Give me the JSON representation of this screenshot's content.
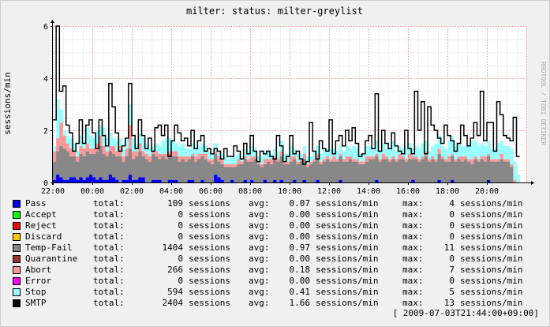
{
  "chart_data": {
    "type": "area",
    "stacked": true,
    "title": "milter: status: milter-greylist",
    "ylabel": "sessions/min",
    "watermark": "RRDTOOL / TOBI OETIKER",
    "ylim": [
      0,
      6
    ],
    "yticks": [
      0,
      2,
      4,
      6
    ],
    "x_range_hours": [
      22,
      46
    ],
    "x_tick_labels": [
      "22:00",
      "00:00",
      "02:00",
      "04:00",
      "06:00",
      "08:00",
      "10:00",
      "12:00",
      "14:00",
      "16:00",
      "18:00",
      "20:00"
    ],
    "x_tick_hours": [
      22,
      24,
      26,
      28,
      30,
      32,
      34,
      36,
      38,
      40,
      42,
      44
    ],
    "grid": true,
    "bucket_minutes": 10,
    "series": [
      {
        "name": "Pass",
        "color": "#0000ff",
        "values": [
          0.1,
          0.3,
          0.2,
          0.1,
          0.1,
          0.2,
          0.2,
          0.1,
          0.2,
          0.1,
          0.2,
          0.3,
          0.2,
          0.1,
          0.2,
          0.1,
          0.1,
          0.3,
          0.2,
          0.1,
          0,
          0.1,
          0.1,
          0.3,
          0.1,
          0.1,
          0.2,
          0.2,
          0,
          0,
          0.1,
          0.1,
          0.1,
          0,
          0,
          0.1,
          0.1,
          0.1,
          0,
          0,
          0,
          0.1,
          0.1,
          0,
          0,
          0.1,
          0,
          0,
          0,
          0.3,
          0.2,
          0.1,
          0,
          0,
          0.1,
          0,
          0,
          0,
          0.1,
          0,
          0.1,
          0,
          0,
          0,
          0.1,
          0,
          0,
          0.1,
          0,
          0.1,
          0,
          0,
          0,
          0.1,
          0,
          0,
          0.1,
          0,
          0,
          0,
          0.1,
          0,
          0,
          0,
          0,
          0,
          0,
          0.1,
          0,
          0,
          0,
          0,
          0,
          0,
          0,
          0,
          0,
          0,
          0.1,
          0,
          0,
          0,
          0,
          0,
          0,
          0,
          0,
          0,
          0,
          0.1,
          0,
          0,
          0,
          0,
          0,
          0,
          0,
          0.1,
          0,
          0,
          0,
          0.1,
          0,
          0,
          0,
          0,
          0,
          0,
          0,
          0,
          0,
          0,
          0.1,
          0,
          0,
          0,
          0,
          0,
          0,
          0,
          0,
          0
        ]
      },
      {
        "name": "Accept",
        "color": "#00ff00",
        "values": []
      },
      {
        "name": "Reject",
        "color": "#ff0000",
        "values": []
      },
      {
        "name": "Discard",
        "color": "#ffcc00",
        "values": []
      },
      {
        "name": "Temp-Fail",
        "color": "#888888",
        "values": [
          0.7,
          0.9,
          1.2,
          1.2,
          1.1,
          0.8,
          0.8,
          0.7,
          0.9,
          0.9,
          1.0,
          0.8,
          0.9,
          1.1,
          1.2,
          1.0,
          0.9,
          0.9,
          0.9,
          0.9,
          1.0,
          0.7,
          0.9,
          1.0,
          0.8,
          0.9,
          1.0,
          0.8,
          0.9,
          0.8,
          1.0,
          0.9,
          0.8,
          1.0,
          0.9,
          1.0,
          0.9,
          0.9,
          0.8,
          0.9,
          0.8,
          0.8,
          0.9,
          0.8,
          0.9,
          0.9,
          0.9,
          0.8,
          0.7,
          0.8,
          0.6,
          0.6,
          0.6,
          0.6,
          0.5,
          0.6,
          0.7,
          0.7,
          0.8,
          0.8,
          0.7,
          0.9,
          0.7,
          0.6,
          0.6,
          0.8,
          0.7,
          0.8,
          0.8,
          0.9,
          0.7,
          0.7,
          0.8,
          0.8,
          0.7,
          0.8,
          0.8,
          0.6,
          0.7,
          0.8,
          0.8,
          0.7,
          0.8,
          0.9,
          0.8,
          0.8,
          0.8,
          0.9,
          0.8,
          0.8,
          0.9,
          0.8,
          0.8,
          0.7,
          0.7,
          0.8,
          0.9,
          0.9,
          0.9,
          0.8,
          0.9,
          0.9,
          0.8,
          0.9,
          0.8,
          0.9,
          0.9,
          0.8,
          0.9,
          0.8,
          0.9,
          0.8,
          0.9,
          1.0,
          0.8,
          0.9,
          0.8,
          1.0,
          0.9,
          0.8,
          0.8,
          0.9,
          0.8,
          0.9,
          0.8,
          0.9,
          0.8,
          0.7,
          0.9,
          0.8,
          0.9,
          0.8,
          0.9,
          0.8,
          0.8,
          0.8,
          0.9,
          0.8,
          0.8,
          0.6
        ]
      },
      {
        "name": "Quarantine",
        "color": "#993333",
        "values": []
      },
      {
        "name": "Abort",
        "color": "#ff9999",
        "values": [
          0.4,
          0.5,
          0.9,
          0.5,
          0.3,
          0.3,
          0.2,
          0.2,
          0.3,
          0.3,
          0.3,
          0.2,
          0.2,
          0.3,
          0.4,
          0.3,
          0.2,
          0.2,
          0.3,
          0.2,
          0.4,
          0.2,
          0.3,
          0.9,
          0.3,
          0.2,
          0.3,
          0.2,
          0.2,
          0.2,
          0.1,
          0.2,
          0.2,
          0.1,
          0.2,
          0.1,
          0.2,
          0.2,
          0.2,
          0.1,
          0.2,
          0.1,
          0.1,
          0.2,
          0.2,
          0.1,
          0.2,
          0.1,
          0.2,
          0.1,
          0.2,
          0.2,
          0.1,
          0.1,
          0.1,
          0.1,
          0.2,
          0.1,
          0.1,
          0.1,
          0.2,
          0.1,
          0.1,
          0.1,
          0.2,
          0.1,
          0.2,
          0.1,
          0.1,
          0.2,
          0.1,
          0.1,
          0.2,
          0.1,
          0.1,
          0.1,
          0.2,
          0.1,
          0.1,
          0.1,
          0.2,
          0.1,
          0.1,
          0.1,
          0.1,
          0.2,
          0.1,
          0.1,
          0.1,
          0.2,
          0.1,
          0.1,
          0.1,
          0.1,
          0.1,
          0.2,
          0.1,
          0.1,
          0.1,
          0.1,
          0.2,
          0.1,
          0.1,
          0.1,
          0.1,
          0.2,
          0.1,
          0.1,
          0.2,
          0.1,
          0.1,
          0.1,
          0.1,
          0.2,
          0.1,
          0.1,
          0.1,
          0.2,
          0.1,
          0.1,
          0.2,
          0.1,
          0.1,
          0.1,
          0.2,
          0.1,
          0.1,
          0.2,
          0.1,
          0.1,
          0.1,
          0.2,
          0.1,
          0.1,
          0.1,
          0.1,
          0.2,
          0.1,
          0.1,
          0.1,
          0.1
        ]
      },
      {
        "name": "Error",
        "color": "#ff00ff",
        "values": []
      },
      {
        "name": "Stop",
        "color": "#99ffff",
        "values": [
          0.2,
          1.5,
          0.5,
          0.2,
          0.3,
          0.4,
          0.3,
          0.2,
          0.4,
          0.3,
          0.6,
          0.5,
          0.4,
          0.5,
          0.4,
          0.7,
          0.5,
          0.5,
          0.3,
          0.4,
          0.3,
          0.3,
          0.4,
          0.8,
          0.5,
          0.3,
          0.4,
          0.5,
          0.4,
          0.3,
          0.2,
          0.3,
          0.3,
          0.5,
          0.6,
          0.5,
          0.4,
          0.3,
          0.4,
          0.5,
          0.3,
          0.3,
          0.4,
          0.3,
          0.3,
          0.4,
          0.3,
          0.3,
          0.2,
          0.3,
          0.2,
          0.2,
          0.3,
          0.2,
          0.3,
          0.3,
          0.2,
          0.2,
          0.3,
          0.3,
          0.4,
          0.3,
          0.2,
          0.3,
          0.3,
          0.3,
          0.2,
          0.3,
          0.3,
          0.4,
          0.3,
          0.3,
          0.4,
          0.3,
          0.3,
          0.2,
          0.3,
          0.3,
          0.2,
          0.3,
          0.3,
          0.3,
          0.4,
          0.3,
          0.4,
          0.3,
          0.3,
          0.3,
          0.3,
          0.4,
          0.3,
          0.5,
          0.4,
          0.3,
          0.3,
          0.4,
          0.4,
          0.3,
          0.5,
          0.3,
          0.4,
          0.3,
          0.4,
          0.6,
          0.3,
          0.3,
          0.3,
          0.4,
          0.4,
          0.3,
          0.4,
          0.4,
          0.5,
          0.4,
          0.3,
          0.4,
          0.6,
          0.5,
          0.4,
          0.4,
          0.6,
          0.7,
          0.5,
          0.5,
          0.4,
          0.4,
          0.6,
          0.7,
          0.6,
          0.5,
          0.5,
          0.4,
          0.5,
          0.4,
          0.4,
          0.6,
          0.5,
          0.5,
          0.5,
          0.6,
          0.7,
          0.3
        ]
      },
      {
        "name": "SMTP",
        "color": "#000000",
        "line": true,
        "values": [
          2.4,
          6.0,
          3.5,
          3.7,
          2.2,
          1.9,
          1.2,
          1.5,
          2.4,
          1.5,
          2.2,
          2.4,
          1.9,
          1.3,
          2.4,
          1.8,
          1.4,
          3.8,
          2.9,
          1.9,
          1.2,
          1.4,
          1.7,
          3.8,
          1.8,
          1.3,
          2.4,
          1.8,
          1.3,
          1.7,
          1.2,
          2.1,
          2.2,
          1.8,
          2.2,
          1.0,
          1.6,
          2.2,
          1.9,
          1.6,
          1.7,
          1.4,
          2.0,
          1.3,
          1.6,
          1.8,
          1.2,
          1.3,
          1.1,
          1.3,
          1.2,
          0.9,
          1.3,
          1.0,
          1.0,
          1.4,
          1.2,
          0.9,
          1.5,
          1.1,
          1.8,
          1.2,
          0.8,
          1.2,
          1.1,
          1.2,
          1.0,
          0.9,
          1.8,
          1.4,
          0.8,
          1.0,
          1.8,
          1.1,
          1.2,
          0.9,
          0.7,
          0.8,
          2.3,
          1.2,
          0.9,
          1.6,
          1.3,
          1.2,
          2.4,
          1.1,
          1.6,
          1.8,
          1.4,
          2.0,
          1.6,
          2.1,
          1.5,
          1.0,
          1.1,
          1.6,
          1.8,
          1.3,
          3.4,
          1.2,
          2.0,
          1.5,
          1.3,
          1.9,
          1.4,
          1.2,
          1.1,
          2.0,
          1.3,
          1.1,
          3.5,
          2.0,
          3.1,
          1.1,
          2.9,
          2.2,
          2.0,
          1.7,
          1.5,
          2.2,
          1.8,
          1.6,
          1.2,
          1.5,
          2.2,
          1.8,
          1.4,
          1.7,
          2.3,
          1.8,
          3.5,
          1.6,
          2.3,
          2.3,
          1.2,
          3.1,
          2.6,
          1.8,
          1.7,
          1.6,
          2.5,
          1.0
        ]
      }
    ]
  },
  "legend": {
    "rows": [
      {
        "name": "Pass",
        "color": "#0000ff",
        "total_label": "total:",
        "total": "109",
        "total_unit": "sessions",
        "avg_label": "avg:",
        "avg": "0.07",
        "avg_unit": "sessions/min",
        "max_label": "max:",
        "max": "4",
        "max_unit": "sessions/min"
      },
      {
        "name": "Accept",
        "color": "#00ff00",
        "total_label": "total:",
        "total": "0",
        "total_unit": "sessions",
        "avg_label": "avg:",
        "avg": "0.00",
        "avg_unit": "sessions/min",
        "max_label": "max:",
        "max": "0",
        "max_unit": "sessions/min"
      },
      {
        "name": "Reject",
        "color": "#ff0000",
        "total_label": "total:",
        "total": "0",
        "total_unit": "sessions",
        "avg_label": "avg:",
        "avg": "0.00",
        "avg_unit": "sessions/min",
        "max_label": "max:",
        "max": "0",
        "max_unit": "sessions/min"
      },
      {
        "name": "Discard",
        "color": "#ffcc00",
        "total_label": "total:",
        "total": "0",
        "total_unit": "sessions",
        "avg_label": "avg:",
        "avg": "0.00",
        "avg_unit": "sessions/min",
        "max_label": "max:",
        "max": "0",
        "max_unit": "sessions/min"
      },
      {
        "name": "Temp-Fail",
        "color": "#888888",
        "total_label": "total:",
        "total": "1404",
        "total_unit": "sessions",
        "avg_label": "avg:",
        "avg": "0.97",
        "avg_unit": "sessions/min",
        "max_label": "max:",
        "max": "11",
        "max_unit": "sessions/min"
      },
      {
        "name": "Quarantine",
        "color": "#993333",
        "total_label": "total:",
        "total": "0",
        "total_unit": "sessions",
        "avg_label": "avg:",
        "avg": "0.00",
        "avg_unit": "sessions/min",
        "max_label": "max:",
        "max": "0",
        "max_unit": "sessions/min"
      },
      {
        "name": "Abort",
        "color": "#ff9999",
        "total_label": "total:",
        "total": "266",
        "total_unit": "sessions",
        "avg_label": "avg:",
        "avg": "0.18",
        "avg_unit": "sessions/min",
        "max_label": "max:",
        "max": "7",
        "max_unit": "sessions/min"
      },
      {
        "name": "Error",
        "color": "#ff00ff",
        "total_label": "total:",
        "total": "0",
        "total_unit": "sessions",
        "avg_label": "avg:",
        "avg": "0.00",
        "avg_unit": "sessions/min",
        "max_label": "max:",
        "max": "0",
        "max_unit": "sessions/min"
      },
      {
        "name": "Stop",
        "color": "#99ffff",
        "total_label": "total:",
        "total": "594",
        "total_unit": "sessions",
        "avg_label": "avg:",
        "avg": "0.41",
        "avg_unit": "sessions/min",
        "max_label": "max:",
        "max": "5",
        "max_unit": "sessions/min"
      },
      {
        "name": "SMTP",
        "color": "#000000",
        "total_label": "total:",
        "total": "2404",
        "total_unit": "sessions",
        "avg_label": "avg:",
        "avg": "1.66",
        "avg_unit": "sessions/min",
        "max_label": "max:",
        "max": "13",
        "max_unit": "sessions/min"
      }
    ]
  },
  "footer": "[ 2009-07-03T21:44:00+09:00]"
}
